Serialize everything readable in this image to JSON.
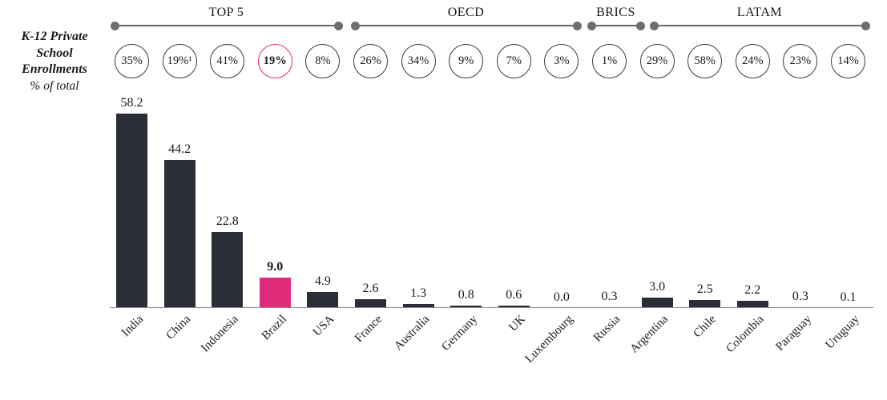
{
  "colors": {
    "bar": "#2b2e37",
    "accent": "#e12a7a",
    "bracket": "#666666",
    "dot": "#6e6e6e",
    "axis": "#8c8c8c",
    "circle_border": "#3a3a3a"
  },
  "title": {
    "line1": "K-12 Private",
    "line2": "School",
    "line3": "Enrollments",
    "subtitle": "% of total"
  },
  "chart_data": {
    "type": "bar",
    "title": "K-12 Private School Enrollments",
    "ylabel": "% of total",
    "xlabel": "",
    "ylim": [
      0,
      60
    ],
    "grid": false,
    "legend": false,
    "categories": [
      "India",
      "China",
      "Indonesia",
      "Brazil",
      "USA",
      "France",
      "Australia",
      "Germany",
      "UK",
      "Luxembourg",
      "Russia",
      "Argentina",
      "Chile",
      "Colombia",
      "Paraguay",
      "Uruguay"
    ],
    "values": [
      58.2,
      44.2,
      22.8,
      9.0,
      4.9,
      2.6,
      1.3,
      0.8,
      0.6,
      0.0,
      0.3,
      3.0,
      2.5,
      2.2,
      0.3,
      0.1
    ],
    "value_labels": [
      "58.2",
      "44.2",
      "22.8",
      "9.0",
      "4.9",
      "2.6",
      "1.3",
      "0.8",
      "0.6",
      "0.0",
      "0.3",
      "3.0",
      "2.5",
      "2.2",
      "0.3",
      "0.1"
    ],
    "percent_circle_labels": [
      "35%",
      "19%¹",
      "41%",
      "19%",
      "8%",
      "26%",
      "34%",
      "9%",
      "7%",
      "3%",
      "1%",
      "29%",
      "58%",
      "24%",
      "23%",
      "14%"
    ],
    "highlight_index": 3,
    "highlight_category": "Brazil",
    "groups": [
      {
        "label": "TOP 5",
        "from": 0,
        "to": 4
      },
      {
        "label": "OECD",
        "from": 5,
        "to": 9
      },
      {
        "label": "BRICS",
        "from": 10,
        "to": 10
      },
      {
        "label": "LATAM",
        "from": 11,
        "to": 15
      }
    ]
  }
}
